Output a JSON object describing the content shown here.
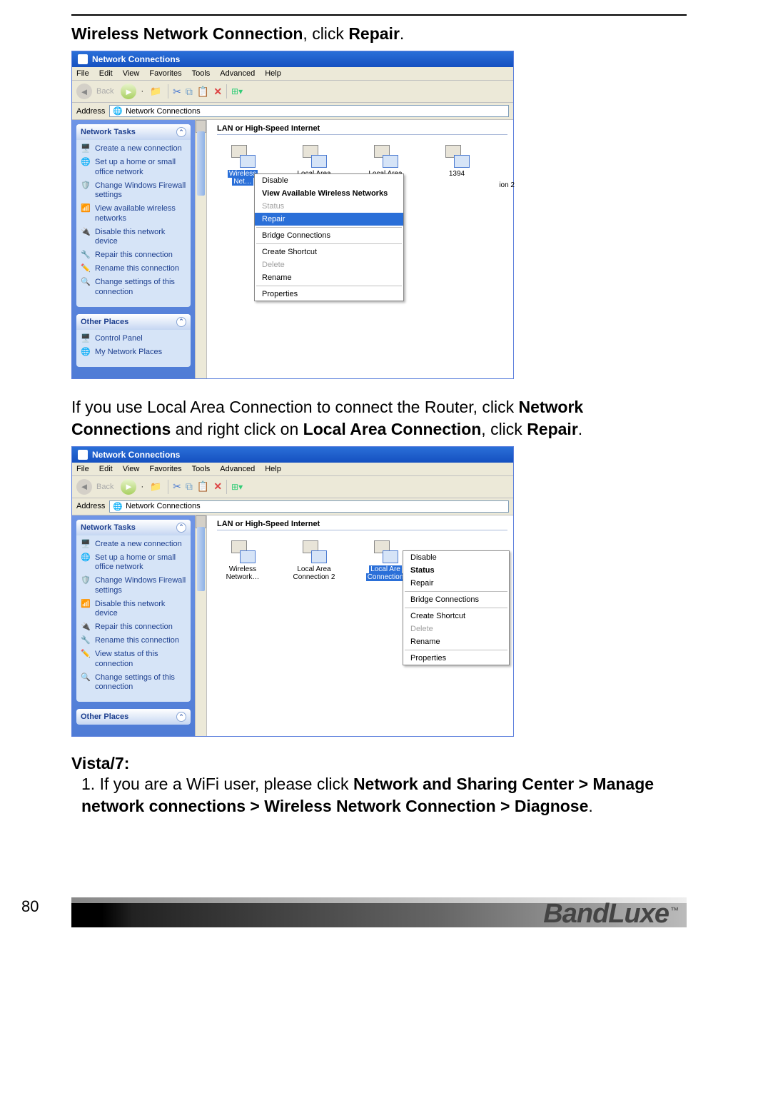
{
  "colors": {
    "xp_title_grad_top": "#2a6fd8",
    "xp_title_grad_bot": "#1550c0",
    "xp_sidebar_grad_top": "#6f95e6",
    "xp_sidebar_grad_bot": "#4f7cd6",
    "xp_chrome": "#ece9d8",
    "link_blue": "#1c3e8e",
    "highlight": "#2a6fd8"
  },
  "instruction1": {
    "pre": "Wireless Network Connection",
    "post": ", click ",
    "action": "Repair",
    "end": "."
  },
  "instruction2": {
    "line1_pre": "If you use Local Area Connection to connect the Router, click ",
    "nc": "Network Connections",
    "mid": " and right click on ",
    "lac": "Local Area Connection",
    "post": ", click ",
    "action": "Repair",
    "end": "."
  },
  "vista": {
    "heading": "Vista/7:",
    "num": "1. ",
    "pre": "If you are a WiFi user, please click ",
    "bold": "Network and Sharing Center > Manage network connections > Wireless Network Connection > Diagnose",
    "end": "."
  },
  "xp": {
    "title": "Network Connections",
    "menus": [
      "File",
      "Edit",
      "View",
      "Favorites",
      "Tools",
      "Advanced",
      "Help"
    ],
    "back_label": "Back",
    "address_label": "Address",
    "address_value": "Network Connections",
    "section": "LAN or High-Speed Internet",
    "panel_tasks": "Network Tasks",
    "panel_places": "Other Places",
    "tasks_a": [
      "Create a new connection",
      "Set up a home or small office network",
      "Change Windows Firewall settings",
      "View available wireless networks",
      "Disable this network device",
      "Repair this connection",
      "Rename this connection",
      "Change settings of this connection"
    ],
    "places_a": [
      "Control Panel",
      "My Network Places"
    ],
    "tasks_b": [
      "Create a new connection",
      "Set up a home or small office network",
      "Change Windows Firewall settings",
      "Disable this network device",
      "Repair this connection",
      "Rename this connection",
      "View status of this connection",
      "Change settings of this connection"
    ],
    "icons_a": {
      "i0_top": "Wireless",
      "i0_bot": "Net…",
      "i1": "Local Area",
      "i2": "Local Area",
      "i3": "1394",
      "i3_extra": "ion 2"
    },
    "icons_b": {
      "i0_top": "Wireless",
      "i0_bot": "Network…",
      "i1_top": "Local Area",
      "i1_bot": "Connection 2",
      "i2_top": "Local Are",
      "i2_bot": "Connection"
    },
    "ctx_a": [
      {
        "t": "Disable",
        "s": ""
      },
      {
        "t": "View Available Wireless Networks",
        "s": "bold"
      },
      {
        "t": "Status",
        "s": "disabled"
      },
      {
        "t": "Repair",
        "s": "hl"
      },
      {
        "t": "__sep"
      },
      {
        "t": "Bridge Connections",
        "s": ""
      },
      {
        "t": "__sep"
      },
      {
        "t": "Create Shortcut",
        "s": ""
      },
      {
        "t": "Delete",
        "s": "disabled"
      },
      {
        "t": "Rename",
        "s": ""
      },
      {
        "t": "__sep"
      },
      {
        "t": "Properties",
        "s": ""
      }
    ],
    "ctx_b": [
      {
        "t": "Disable",
        "s": ""
      },
      {
        "t": "Status",
        "s": "bold"
      },
      {
        "t": "Repair",
        "s": ""
      },
      {
        "t": "__sep"
      },
      {
        "t": "Bridge Connections",
        "s": ""
      },
      {
        "t": "__sep"
      },
      {
        "t": "Create Shortcut",
        "s": ""
      },
      {
        "t": "Delete",
        "s": "disabled"
      },
      {
        "t": "Rename",
        "s": ""
      },
      {
        "t": "__sep"
      },
      {
        "t": "Properties",
        "s": ""
      }
    ]
  },
  "footer": {
    "page": "80",
    "brand": "BandLuxe",
    "tm": "™"
  }
}
